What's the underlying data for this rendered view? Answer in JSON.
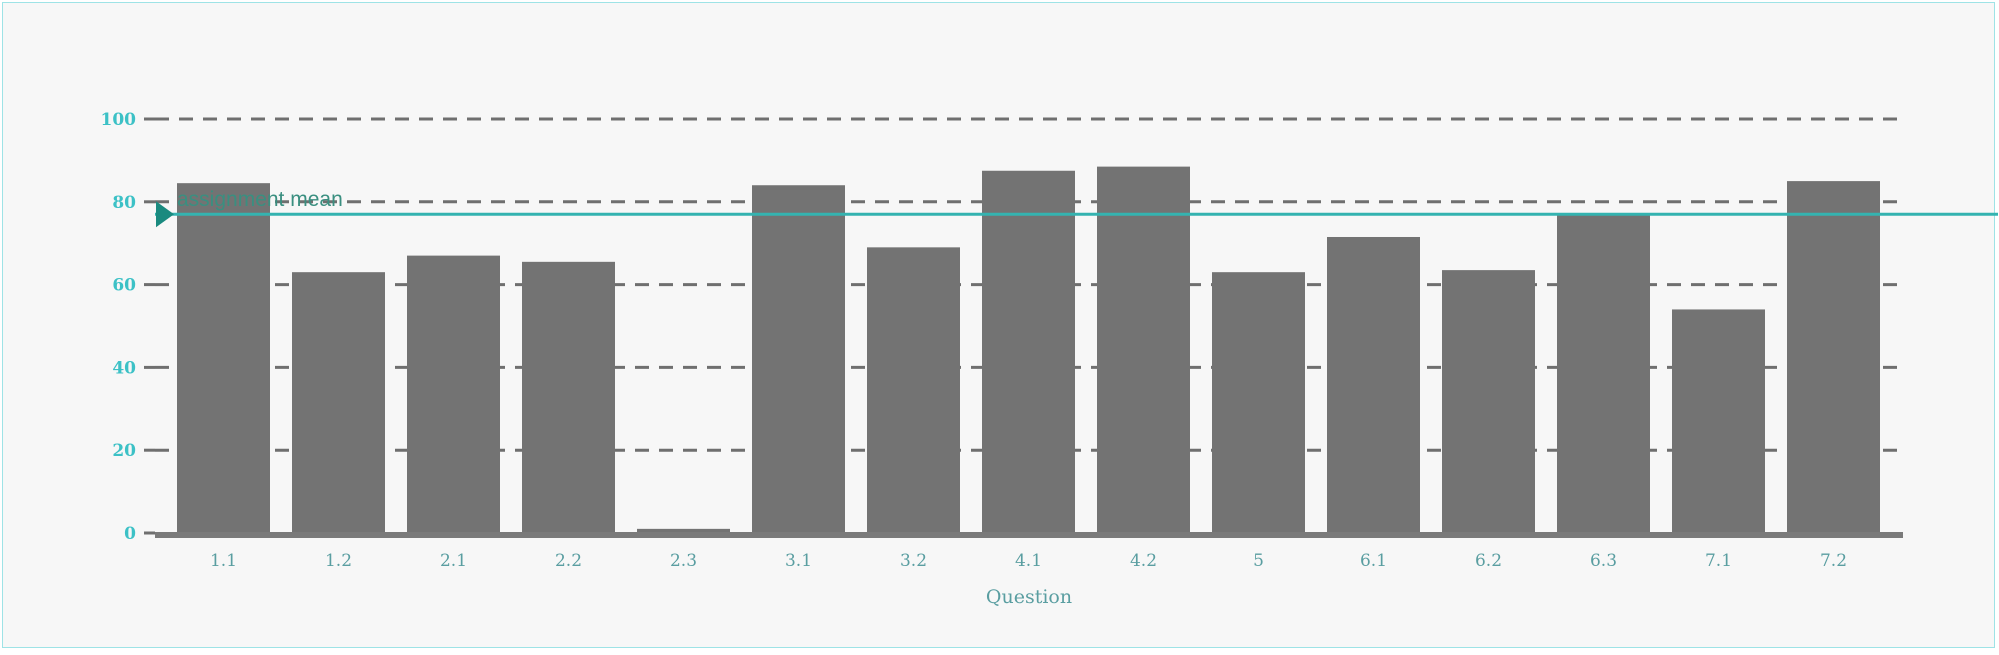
{
  "chart_data": {
    "type": "bar",
    "categories": [
      "1.1",
      "1.2",
      "2.1",
      "2.2",
      "2.3",
      "3.1",
      "3.2",
      "4.1",
      "4.2",
      "5",
      "6.1",
      "6.2",
      "6.3",
      "7.1",
      "7.2"
    ],
    "values": [
      84.5,
      63,
      67,
      65.5,
      1,
      84,
      69,
      87.5,
      88.5,
      63,
      71.5,
      63.5,
      77,
      54,
      85
    ],
    "xlabel": "Question",
    "ylabel": "",
    "ylim": [
      0,
      100
    ],
    "yticks": [
      0,
      20,
      40,
      60,
      80,
      100
    ],
    "grid": true,
    "reference_line": {
      "label": "assignment mean",
      "value": 77
    },
    "colors": {
      "bar": "#737373",
      "grid": "#6f6f6f",
      "mean_line": "#34b3b0",
      "mean_marker": "#1a8a7f",
      "axis_ticks": "#3cc1c6",
      "axis_text": "#5a9ea1",
      "baseline": "#7a7a7a",
      "background": "#f7f7f7"
    }
  }
}
